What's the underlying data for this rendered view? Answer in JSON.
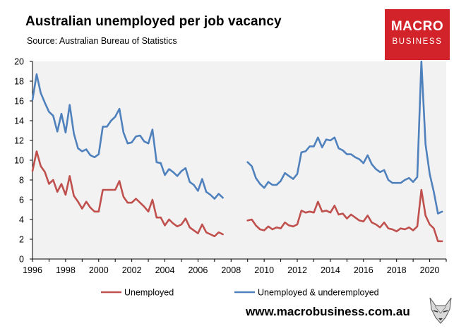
{
  "header": {
    "title": "Australian unemployed per job vacancy",
    "subtitle": "Source: Australian Bureau of Statistics"
  },
  "logo": {
    "line1": "MACRO",
    "line2": "BUSINESS"
  },
  "footer": {
    "website": "www.macrobusiness.com.au"
  },
  "colors": {
    "unemployed": "#c0504d",
    "underemployed": "#4f81bd",
    "plot_bg": "#f2f2f2",
    "logo_bg": "#d2232a"
  },
  "chart_data": {
    "type": "line",
    "title": "Australian unemployed per job vacancy",
    "subtitle": "Source: Australian Bureau of Statistics",
    "xlim": [
      1996,
      2021
    ],
    "ylim": [
      0,
      20
    ],
    "x_ticks": [
      1996,
      1998,
      2000,
      2002,
      2004,
      2006,
      2008,
      2010,
      2012,
      2014,
      2016,
      2018,
      2020
    ],
    "y_ticks": [
      0,
      2,
      4,
      6,
      8,
      10,
      12,
      14,
      16,
      18,
      20
    ],
    "grid": false,
    "legend_position": "bottom",
    "series": [
      {
        "name": "Unemployed",
        "color": "#c0504d",
        "segments": [
          [
            [
              1996.0,
              8.9
            ],
            [
              1996.25,
              10.9
            ],
            [
              1996.5,
              9.4
            ],
            [
              1996.75,
              8.8
            ],
            [
              1997.0,
              7.6
            ],
            [
              1997.25,
              8.0
            ],
            [
              1997.5,
              6.8
            ],
            [
              1997.75,
              7.6
            ],
            [
              1998.0,
              6.5
            ],
            [
              1998.25,
              8.4
            ],
            [
              1998.5,
              6.4
            ],
            [
              1998.75,
              5.8
            ],
            [
              1999.0,
              5.1
            ],
            [
              1999.25,
              5.8
            ],
            [
              1999.5,
              5.2
            ],
            [
              1999.75,
              4.8
            ],
            [
              2000.0,
              4.8
            ],
            [
              2000.25,
              7.0
            ],
            [
              2000.5,
              7.0
            ],
            [
              2000.75,
              7.0
            ],
            [
              2001.0,
              7.0
            ],
            [
              2001.25,
              7.9
            ],
            [
              2001.5,
              6.3
            ],
            [
              2001.75,
              5.7
            ],
            [
              2002.0,
              5.7
            ],
            [
              2002.25,
              6.1
            ],
            [
              2002.5,
              5.7
            ],
            [
              2002.75,
              5.3
            ],
            [
              2003.0,
              4.8
            ],
            [
              2003.25,
              6.0
            ],
            [
              2003.5,
              4.2
            ],
            [
              2003.75,
              4.2
            ],
            [
              2004.0,
              3.4
            ],
            [
              2004.25,
              4.0
            ],
            [
              2004.5,
              3.6
            ],
            [
              2004.75,
              3.3
            ],
            [
              2005.0,
              3.5
            ],
            [
              2005.25,
              4.1
            ],
            [
              2005.5,
              3.2
            ],
            [
              2005.75,
              2.9
            ],
            [
              2006.0,
              2.6
            ],
            [
              2006.25,
              3.5
            ],
            [
              2006.5,
              2.7
            ],
            [
              2006.75,
              2.5
            ],
            [
              2007.0,
              2.3
            ],
            [
              2007.25,
              2.7
            ],
            [
              2007.5,
              2.5
            ]
          ],
          [
            [
              2009.0,
              3.9
            ],
            [
              2009.25,
              4.0
            ],
            [
              2009.5,
              3.4
            ],
            [
              2009.75,
              3.0
            ],
            [
              2010.0,
              2.9
            ],
            [
              2010.25,
              3.3
            ],
            [
              2010.5,
              3.0
            ],
            [
              2010.75,
              3.2
            ],
            [
              2011.0,
              3.1
            ],
            [
              2011.25,
              3.7
            ],
            [
              2011.5,
              3.4
            ],
            [
              2011.75,
              3.3
            ],
            [
              2012.0,
              3.5
            ],
            [
              2012.25,
              4.9
            ],
            [
              2012.5,
              4.7
            ],
            [
              2012.75,
              4.8
            ],
            [
              2013.0,
              4.7
            ],
            [
              2013.25,
              5.8
            ],
            [
              2013.5,
              4.8
            ],
            [
              2013.75,
              4.9
            ],
            [
              2014.0,
              4.7
            ],
            [
              2014.25,
              5.4
            ],
            [
              2014.5,
              4.5
            ],
            [
              2014.75,
              4.6
            ],
            [
              2015.0,
              4.1
            ],
            [
              2015.25,
              4.5
            ],
            [
              2015.5,
              4.2
            ],
            [
              2015.75,
              3.9
            ],
            [
              2016.0,
              3.8
            ],
            [
              2016.25,
              4.4
            ],
            [
              2016.5,
              3.7
            ],
            [
              2016.75,
              3.5
            ],
            [
              2017.0,
              3.2
            ],
            [
              2017.25,
              3.7
            ],
            [
              2017.5,
              3.1
            ],
            [
              2017.75,
              3.0
            ],
            [
              2018.0,
              2.8
            ],
            [
              2018.25,
              3.1
            ],
            [
              2018.5,
              3.0
            ],
            [
              2018.75,
              3.2
            ],
            [
              2019.0,
              2.9
            ],
            [
              2019.25,
              3.3
            ],
            [
              2019.5,
              7.0
            ],
            [
              2019.75,
              4.4
            ],
            [
              2020.0,
              3.5
            ],
            [
              2020.25,
              3.1
            ],
            [
              2020.5,
              1.8
            ],
            [
              2020.75,
              1.8
            ]
          ]
        ]
      },
      {
        "name": "Unemployed & underemployed",
        "color": "#4f81bd",
        "segments": [
          [
            [
              1996.0,
              16.1
            ],
            [
              1996.25,
              18.7
            ],
            [
              1996.5,
              16.8
            ],
            [
              1996.75,
              15.8
            ],
            [
              1997.0,
              14.9
            ],
            [
              1997.25,
              14.5
            ],
            [
              1997.5,
              12.9
            ],
            [
              1997.75,
              14.7
            ],
            [
              1998.0,
              12.8
            ],
            [
              1998.25,
              15.6
            ],
            [
              1998.5,
              12.7
            ],
            [
              1998.75,
              11.2
            ],
            [
              1999.0,
              10.9
            ],
            [
              1999.25,
              11.1
            ],
            [
              1999.5,
              10.5
            ],
            [
              1999.75,
              10.3
            ],
            [
              2000.0,
              10.6
            ],
            [
              2000.25,
              13.4
            ],
            [
              2000.5,
              13.4
            ],
            [
              2000.75,
              14.0
            ],
            [
              2001.0,
              14.4
            ],
            [
              2001.25,
              15.2
            ],
            [
              2001.5,
              12.8
            ],
            [
              2001.75,
              11.7
            ],
            [
              2002.0,
              11.8
            ],
            [
              2002.25,
              12.4
            ],
            [
              2002.5,
              12.5
            ],
            [
              2002.75,
              11.9
            ],
            [
              2003.0,
              11.7
            ],
            [
              2003.25,
              13.1
            ],
            [
              2003.5,
              9.8
            ],
            [
              2003.75,
              9.7
            ],
            [
              2004.0,
              8.5
            ],
            [
              2004.25,
              9.1
            ],
            [
              2004.5,
              8.8
            ],
            [
              2004.75,
              8.4
            ],
            [
              2005.0,
              8.9
            ],
            [
              2005.25,
              9.2
            ],
            [
              2005.5,
              7.8
            ],
            [
              2005.75,
              7.5
            ],
            [
              2006.0,
              6.9
            ],
            [
              2006.25,
              8.1
            ],
            [
              2006.5,
              6.8
            ],
            [
              2006.75,
              6.5
            ],
            [
              2007.0,
              6.1
            ],
            [
              2007.25,
              6.6
            ],
            [
              2007.5,
              6.2
            ]
          ],
          [
            [
              2009.0,
              9.8
            ],
            [
              2009.25,
              9.4
            ],
            [
              2009.5,
              8.2
            ],
            [
              2009.75,
              7.6
            ],
            [
              2010.0,
              7.2
            ],
            [
              2010.25,
              7.8
            ],
            [
              2010.5,
              7.5
            ],
            [
              2010.75,
              7.5
            ],
            [
              2011.0,
              7.9
            ],
            [
              2011.25,
              8.7
            ],
            [
              2011.5,
              8.4
            ],
            [
              2011.75,
              8.1
            ],
            [
              2012.0,
              8.6
            ],
            [
              2012.25,
              10.8
            ],
            [
              2012.5,
              10.9
            ],
            [
              2012.75,
              11.4
            ],
            [
              2013.0,
              11.4
            ],
            [
              2013.25,
              12.3
            ],
            [
              2013.5,
              11.3
            ],
            [
              2013.75,
              12.1
            ],
            [
              2014.0,
              12.0
            ],
            [
              2014.25,
              12.3
            ],
            [
              2014.5,
              11.2
            ],
            [
              2014.75,
              11.0
            ],
            [
              2015.0,
              10.6
            ],
            [
              2015.25,
              10.6
            ],
            [
              2015.5,
              10.3
            ],
            [
              2015.75,
              10.1
            ],
            [
              2016.0,
              9.7
            ],
            [
              2016.25,
              10.5
            ],
            [
              2016.5,
              9.6
            ],
            [
              2016.75,
              9.1
            ],
            [
              2017.0,
              8.8
            ],
            [
              2017.25,
              9.0
            ],
            [
              2017.5,
              8.0
            ],
            [
              2017.75,
              7.7
            ],
            [
              2018.0,
              7.7
            ],
            [
              2018.25,
              7.7
            ],
            [
              2018.5,
              8.0
            ],
            [
              2018.75,
              8.2
            ],
            [
              2019.0,
              7.8
            ],
            [
              2019.25,
              8.3
            ],
            [
              2019.5,
              20.0
            ],
            [
              2019.75,
              11.6
            ],
            [
              2020.0,
              8.6
            ],
            [
              2020.25,
              6.8
            ],
            [
              2020.5,
              4.6
            ],
            [
              2020.75,
              4.8
            ]
          ]
        ]
      }
    ]
  }
}
